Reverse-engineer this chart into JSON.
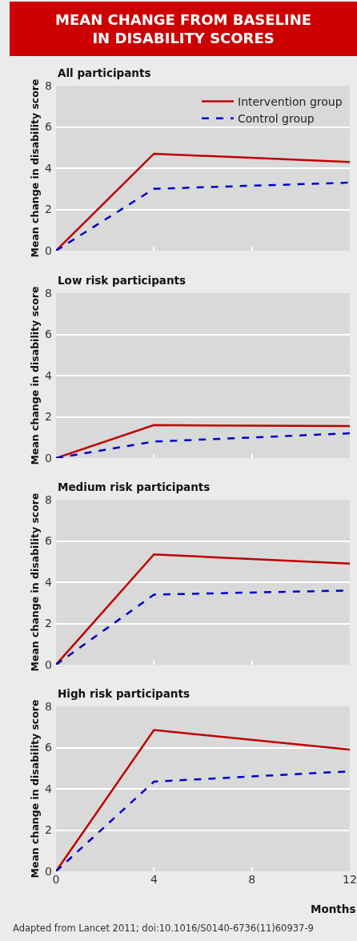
{
  "chart_data": [
    {
      "type": "line",
      "title": "MEAN CHANGE FROM BASELINE IN DISABILITY SCORES",
      "subtitle": "All participants",
      "ylabel": "Mean change in disability score",
      "x": [
        0,
        4,
        12
      ],
      "xlim": [
        0,
        12
      ],
      "xticks": [
        0,
        4,
        8,
        12
      ],
      "ylim": [
        0,
        8
      ],
      "yticks": [
        0,
        2,
        4,
        6,
        8
      ],
      "grid": "y",
      "legend": "top right",
      "tick_labels": "y",
      "marker": "none",
      "series": [
        {
          "name": "Intervention group",
          "color": "#c00000",
          "line_style": "solid",
          "values": [
            0,
            4.7,
            4.3
          ]
        },
        {
          "name": "Control group",
          "color": "#0000cc",
          "line_style": "dashed",
          "values": [
            0,
            3.0,
            3.3
          ]
        }
      ]
    },
    {
      "type": "line",
      "subtitle": "Low risk participants",
      "ylabel": "Mean change in disability score",
      "x": [
        0,
        4,
        12
      ],
      "xlim": [
        0,
        12
      ],
      "xticks": [
        0,
        4,
        8,
        12
      ],
      "ylim": [
        0,
        8
      ],
      "yticks": [
        0,
        2,
        4,
        6,
        8
      ],
      "grid": "y",
      "tick_labels": "y",
      "marker": "none",
      "series": [
        {
          "color": "#c00000",
          "line_style": "solid",
          "values": [
            0,
            1.6,
            1.55
          ]
        },
        {
          "color": "#0000cc",
          "line_style": "dashed",
          "values": [
            0,
            0.8,
            1.2
          ]
        }
      ]
    },
    {
      "type": "line",
      "subtitle": "Medium risk participants",
      "ylabel": "Mean change in disability score",
      "x": [
        0,
        4,
        12
      ],
      "xlim": [
        0,
        12
      ],
      "xticks": [
        0,
        4,
        8,
        12
      ],
      "ylim": [
        0,
        8
      ],
      "yticks": [
        0,
        2,
        4,
        6,
        8
      ],
      "grid": "y",
      "tick_labels": "y",
      "marker": "none",
      "series": [
        {
          "color": "#c00000",
          "line_style": "solid",
          "values": [
            0,
            5.35,
            4.9
          ]
        },
        {
          "color": "#0000cc",
          "line_style": "dashed",
          "values": [
            0,
            3.4,
            3.6
          ]
        }
      ]
    },
    {
      "type": "line",
      "subtitle": "High risk participants",
      "ylabel": "Mean change in disability score",
      "xlabel": "Months",
      "x": [
        0,
        4,
        12
      ],
      "xlim": [
        0,
        12
      ],
      "xticks": [
        0,
        4,
        8,
        12
      ],
      "ylim": [
        0,
        8
      ],
      "yticks": [
        0,
        2,
        4,
        6,
        8
      ],
      "grid": "y",
      "marker": "none",
      "annotations": [
        "Adapted from Lancet 2011; doi:10.1016/S0140-6736(11)60937-9"
      ],
      "series": [
        {
          "color": "#c00000",
          "line_style": "solid",
          "values": [
            0,
            6.85,
            5.9
          ]
        },
        {
          "color": "#0000cc",
          "line_style": "dashed",
          "values": [
            0,
            4.35,
            4.85
          ]
        }
      ]
    }
  ]
}
